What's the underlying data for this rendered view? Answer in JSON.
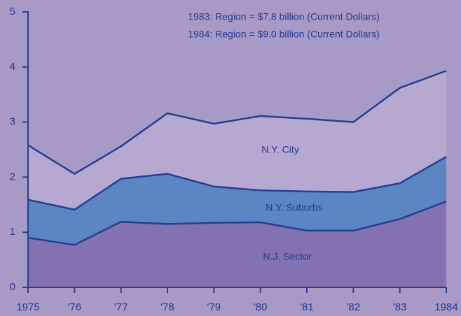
{
  "chart_data": {
    "type": "stacked_area",
    "annotations": [
      "1983: Region = $7.8 billion (Current Dollars)",
      "1984: Region = $9.0 billion (Current Dollars)"
    ],
    "categories": [
      "1975",
      "'76",
      "'77",
      "'78",
      "'79",
      "'80",
      "'81",
      "'82",
      "'83",
      "1984"
    ],
    "series": [
      {
        "name": "N.J. Sector",
        "color": "#8272b2",
        "values": [
          0.9,
          0.77,
          1.19,
          1.15,
          1.17,
          1.18,
          1.03,
          1.03,
          1.24,
          1.56
        ]
      },
      {
        "name": "N.Y. Suburbs",
        "color": "#5b86c3",
        "values": [
          0.69,
          0.64,
          0.78,
          0.91,
          0.66,
          0.58,
          0.71,
          0.7,
          0.65,
          0.81
        ]
      },
      {
        "name": "N.Y. City",
        "color": "#b6a8d0",
        "values": [
          0.99,
          0.65,
          0.59,
          1.1,
          1.14,
          1.35,
          1.32,
          1.27,
          1.73,
          1.56
        ]
      }
    ],
    "line_color": "#263f93",
    "ylim": [
      0,
      5
    ],
    "yticks": [
      0,
      1,
      2,
      3,
      4,
      5
    ]
  }
}
